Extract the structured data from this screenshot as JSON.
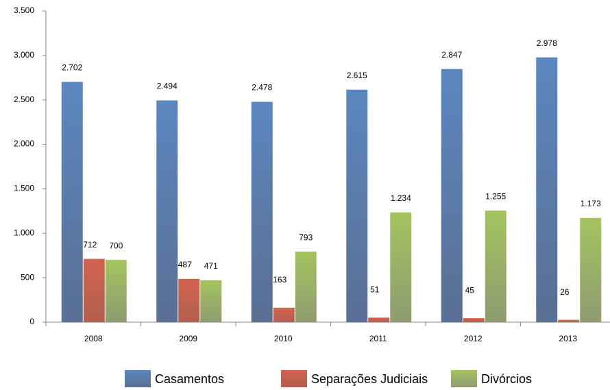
{
  "chart_data": {
    "type": "bar",
    "categories": [
      "2008",
      "2009",
      "2010",
      "2011",
      "2012",
      "2013"
    ],
    "series": [
      {
        "name": "Casamentos",
        "color": "#4f81bd",
        "values": [
          2702,
          2494,
          2478,
          2615,
          2847,
          2978
        ],
        "value_labels": [
          "2.702",
          "2.494",
          "2.478",
          "2.615",
          "2.847",
          "2.978"
        ]
      },
      {
        "name": "Separações Judiciais",
        "color": "#c0504d",
        "values": [
          712,
          487,
          163,
          51,
          45,
          26
        ],
        "value_labels": [
          "712",
          "487",
          "163",
          "51",
          "45",
          "26"
        ]
      },
      {
        "name": "Divórcios",
        "color": "#9bbb59",
        "values": [
          700,
          471,
          793,
          1234,
          1255,
          1173
        ],
        "value_labels": [
          "700",
          "471",
          "793",
          "1.234",
          "1.255",
          "1.173"
        ]
      }
    ],
    "ylim": [
      0,
      3500
    ],
    "yticks": [
      0,
      500,
      {
        "value": 1000,
        "label": "1.000"
      },
      {
        "value": 1500,
        "label": "1.500"
      },
      {
        "value": 2000,
        "label": "2.000"
      },
      {
        "value": 2500,
        "label": "2.500"
      },
      {
        "value": 3000,
        "label": "3.000"
      },
      {
        "value": 3500,
        "label": "3.500"
      }
    ],
    "legend": "bottom"
  }
}
